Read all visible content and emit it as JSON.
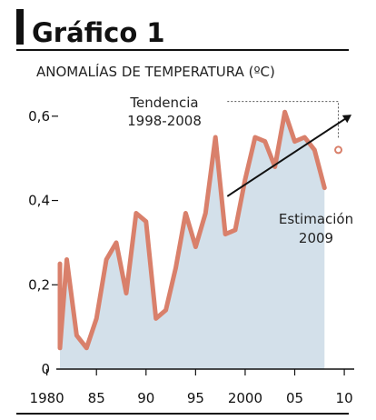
{
  "header": {
    "title": "Gráfico 1"
  },
  "colors": {
    "header_block": "#111111",
    "line": "#d9806b",
    "area": "#d3e0ea",
    "text": "#222222",
    "trend": "#111111",
    "estimate": "#d9806b",
    "rule": "#555555"
  },
  "chart_data": {
    "type": "line",
    "title": "ANOMALÍAS DE TEMPERATURA (ºC)",
    "xlabel": "",
    "ylabel": "",
    "xlim": [
      1979.3,
      2011
    ],
    "ylim": [
      0,
      0.66
    ],
    "x_ticks": [
      1980,
      1985,
      1990,
      1995,
      2000,
      2005,
      2010
    ],
    "x_tick_labels": [
      "1980",
      "85",
      "90",
      "95",
      "2000",
      "05",
      "10"
    ],
    "y_ticks": [
      0,
      0.2,
      0.4,
      0.6
    ],
    "y_tick_labels": [
      "0",
      "0,2",
      "0,4",
      "0,6"
    ],
    "grid": false,
    "area_fill": true,
    "series": [
      {
        "x": [
          1979,
          1980,
          1981,
          1982,
          1983,
          1984,
          1985,
          1986,
          1987,
          1988,
          1989,
          1990,
          1991,
          1992,
          1993,
          1994,
          1995,
          1996,
          1997,
          1998,
          1999,
          2000,
          2001,
          2002,
          2003,
          2004,
          2005,
          2006,
          2007,
          2008
        ],
        "values": [
          0.17,
          0.25,
          0.05,
          0.26,
          0.08,
          0.05,
          0.12,
          0.26,
          0.3,
          0.18,
          0.37,
          0.35,
          0.12,
          0.14,
          0.24,
          0.37,
          0.29,
          0.37,
          0.55,
          0.32,
          0.33,
          0.45,
          0.55,
          0.54,
          0.48,
          0.61,
          0.54,
          0.55,
          0.52,
          0.43
        ]
      }
    ],
    "trend": {
      "label_line1": "Tendencia",
      "label_line2": "1998-2008",
      "x": [
        1998.2,
        2010.5
      ],
      "values": [
        0.41,
        0.6
      ],
      "bracket_right_x": 2009.4,
      "bracket_top_y": 0.635
    },
    "estimate": {
      "label_line1": "Estimación",
      "label_line2": "2009",
      "x": 2009.4,
      "value": 0.52
    }
  }
}
